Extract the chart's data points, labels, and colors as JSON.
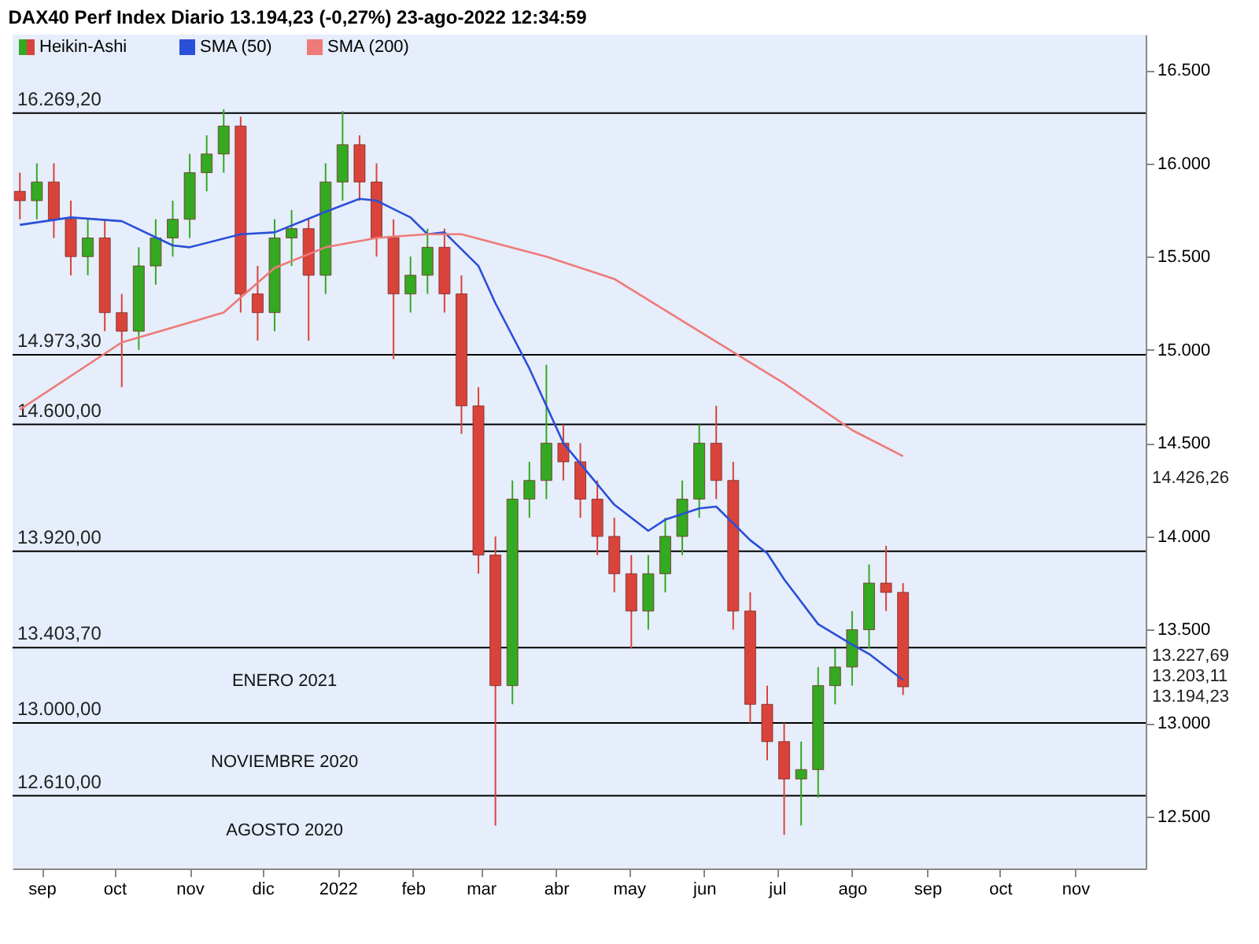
{
  "chart_data": {
    "type": "candlestick",
    "title": "DAX40 Perf Index Diario 13.194,23 (-0,27%) 23-ago-2022 12:34:59",
    "legend": "top left",
    "xlim": [
      "2021-08-20",
      "2022-11-30"
    ],
    "xticks": [
      {
        "value": "2021-09-01",
        "label": "sep"
      },
      {
        "value": "2021-10-01",
        "label": "oct"
      },
      {
        "value": "2021-11-01",
        "label": "nov"
      },
      {
        "value": "2021-12-01",
        "label": "dic"
      },
      {
        "value": "2022-01-01",
        "label": "2022"
      },
      {
        "value": "2022-02-01",
        "label": "feb"
      },
      {
        "value": "2022-03-01",
        "label": "mar"
      },
      {
        "value": "2022-04-01",
        "label": "abr"
      },
      {
        "value": "2022-05-01",
        "label": "may"
      },
      {
        "value": "2022-06-01",
        "label": "jun"
      },
      {
        "value": "2022-07-01",
        "label": "jul"
      },
      {
        "value": "2022-08-01",
        "label": "ago"
      },
      {
        "value": "2022-09-01",
        "label": "sep"
      },
      {
        "value": "2022-10-01",
        "label": "oct"
      },
      {
        "value": "2022-11-01",
        "label": "nov"
      }
    ],
    "ylim": [
      12220,
      16690
    ],
    "yticks": [
      {
        "value": 12500,
        "label": "12.500"
      },
      {
        "value": 13000,
        "label": "13.000"
      },
      {
        "value": 13500,
        "label": "13.500"
      },
      {
        "value": 14000,
        "label": "14.000"
      },
      {
        "value": 14500,
        "label": "14.500"
      },
      {
        "value": 15000,
        "label": "15.000"
      },
      {
        "value": 15500,
        "label": "15.500"
      },
      {
        "value": 16000,
        "label": "16.000"
      },
      {
        "value": 16500,
        "label": "16.500"
      }
    ],
    "ref_lines": [
      {
        "axis": "y",
        "value": 16269.2,
        "label": "16.269,20",
        "color": "#000000"
      },
      {
        "axis": "y",
        "value": 14973.3,
        "label": "14.973,30",
        "color": "#000000"
      },
      {
        "axis": "y",
        "value": 14600,
        "label": "14.600,00",
        "color": "#000000"
      },
      {
        "axis": "y",
        "value": 13920,
        "label": "13.920,00",
        "color": "#000000"
      },
      {
        "axis": "y",
        "value": 13403.7,
        "label": "13.403,70",
        "color": "#000000"
      },
      {
        "axis": "y",
        "value": 13000,
        "label": "13.000,00",
        "color": "#000000"
      },
      {
        "axis": "y",
        "value": 12610,
        "label": "12.610,00",
        "color": "#000000"
      }
    ],
    "annotations": [
      "ENERO 2021",
      "NOVIEMBRE 2020",
      "AGOSTO 2020",
      "14.426,26",
      "13.227,69",
      "13.203,11",
      "13.194,23"
    ],
    "series": [
      {
        "name": "Heikin-Ashi",
        "x": [
          "2021-08-23",
          "2021-08-30",
          "2021-09-06",
          "2021-09-13",
          "2021-09-20",
          "2021-09-27",
          "2021-10-04",
          "2021-10-11",
          "2021-10-18",
          "2021-10-25",
          "2021-11-01",
          "2021-11-08",
          "2021-11-15",
          "2021-11-22",
          "2021-11-29",
          "2021-12-06",
          "2021-12-13",
          "2021-12-20",
          "2021-12-27",
          "2022-01-03",
          "2022-01-10",
          "2022-01-17",
          "2022-01-24",
          "2022-01-31",
          "2022-02-07",
          "2022-02-14",
          "2022-02-21",
          "2022-02-28",
          "2022-03-07",
          "2022-03-14",
          "2022-03-21",
          "2022-03-28",
          "2022-04-04",
          "2022-04-11",
          "2022-04-18",
          "2022-04-25",
          "2022-05-02",
          "2022-05-09",
          "2022-05-16",
          "2022-05-23",
          "2022-05-30",
          "2022-06-06",
          "2022-06-13",
          "2022-06-20",
          "2022-06-27",
          "2022-07-04",
          "2022-07-11",
          "2022-07-18",
          "2022-07-25",
          "2022-08-01",
          "2022-08-08",
          "2022-08-15",
          "2022-08-22"
        ],
        "ohlc": [
          [
            15850,
            15950,
            15700,
            15800
          ],
          [
            15800,
            16000,
            15700,
            15900
          ],
          [
            15900,
            16000,
            15600,
            15700
          ],
          [
            15700,
            15800,
            15400,
            15500
          ],
          [
            15500,
            15700,
            15400,
            15600
          ],
          [
            15600,
            15700,
            15100,
            15200
          ],
          [
            15200,
            15300,
            14800,
            15100
          ],
          [
            15100,
            15550,
            15000,
            15450
          ],
          [
            15450,
            15700,
            15350,
            15600
          ],
          [
            15600,
            15800,
            15500,
            15700
          ],
          [
            15700,
            16050,
            15600,
            15950
          ],
          [
            15950,
            16150,
            15850,
            16050
          ],
          [
            16050,
            16290,
            15950,
            16200
          ],
          [
            16200,
            16250,
            15200,
            15300
          ],
          [
            15300,
            15450,
            15050,
            15200
          ],
          [
            15200,
            15700,
            15100,
            15600
          ],
          [
            15600,
            15750,
            15450,
            15650
          ],
          [
            15650,
            15700,
            15050,
            15400
          ],
          [
            15400,
            16000,
            15300,
            15900
          ],
          [
            15900,
            16280,
            15800,
            16100
          ],
          [
            16100,
            16150,
            15800,
            15900
          ],
          [
            15900,
            16000,
            15500,
            15600
          ],
          [
            15600,
            15700,
            14950,
            15300
          ],
          [
            15300,
            15500,
            15200,
            15400
          ],
          [
            15400,
            15650,
            15300,
            15550
          ],
          [
            15550,
            15650,
            15200,
            15300
          ],
          [
            15300,
            15400,
            14550,
            14700
          ],
          [
            14700,
            14800,
            13800,
            13900
          ],
          [
            13900,
            14000,
            12450,
            13200
          ],
          [
            13200,
            14300,
            13100,
            14200
          ],
          [
            14200,
            14400,
            14100,
            14300
          ],
          [
            14300,
            14920,
            14200,
            14500
          ],
          [
            14500,
            14600,
            14300,
            14400
          ],
          [
            14400,
            14500,
            14100,
            14200
          ],
          [
            14200,
            14300,
            13900,
            14000
          ],
          [
            14000,
            14100,
            13700,
            13800
          ],
          [
            13800,
            13900,
            13400,
            13600
          ],
          [
            13600,
            13900,
            13500,
            13800
          ],
          [
            13800,
            14100,
            13700,
            14000
          ],
          [
            14000,
            14300,
            13900,
            14200
          ],
          [
            14200,
            14600,
            14100,
            14500
          ],
          [
            14500,
            14700,
            14200,
            14300
          ],
          [
            14300,
            14400,
            13500,
            13600
          ],
          [
            13600,
            13700,
            13000,
            13100
          ],
          [
            13100,
            13200,
            12800,
            12900
          ],
          [
            12900,
            13000,
            12400,
            12700
          ],
          [
            12700,
            12900,
            12450,
            12750
          ],
          [
            12750,
            13300,
            12600,
            13200
          ],
          [
            13200,
            13400,
            13100,
            13300
          ],
          [
            13300,
            13600,
            13200,
            13500
          ],
          [
            13500,
            13850,
            13400,
            13750
          ],
          [
            13750,
            13950,
            13600,
            13700
          ],
          [
            13700,
            13750,
            13150,
            13194
          ]
        ],
        "colors": [
          "#d9433b",
          "#33aa22",
          "#d9433b",
          "#d9433b",
          "#33aa22",
          "#d9433b",
          "#d9433b",
          "#33aa22",
          "#33aa22",
          "#33aa22",
          "#33aa22",
          "#33aa22",
          "#33aa22",
          "#d9433b",
          "#d9433b",
          "#33aa22",
          "#33aa22",
          "#d9433b",
          "#33aa22",
          "#33aa22",
          "#d9433b",
          "#d9433b",
          "#d9433b",
          "#33aa22",
          "#33aa22",
          "#d9433b",
          "#d9433b",
          "#d9433b",
          "#d9433b",
          "#33aa22",
          "#33aa22",
          "#33aa22",
          "#d9433b",
          "#d9433b",
          "#d9433b",
          "#d9433b",
          "#d9433b",
          "#33aa22",
          "#33aa22",
          "#33aa22",
          "#33aa22",
          "#d9433b",
          "#d9433b",
          "#d9433b",
          "#d9433b",
          "#d9433b",
          "#33aa22",
          "#33aa22",
          "#33aa22",
          "#33aa22",
          "#33aa22",
          "#d9433b",
          "#d9433b"
        ]
      },
      {
        "name": "SMA (50)",
        "type": "line",
        "color": "#2a4fd8",
        "x": [
          "2021-08-23",
          "2021-09-13",
          "2021-10-04",
          "2021-10-25",
          "2021-11-01",
          "2021-11-22",
          "2021-12-06",
          "2021-12-27",
          "2022-01-10",
          "2022-01-17",
          "2022-01-31",
          "2022-02-07",
          "2022-02-14",
          "2022-02-28",
          "2022-03-07",
          "2022-03-21",
          "2022-04-04",
          "2022-04-25",
          "2022-05-09",
          "2022-05-16",
          "2022-05-30",
          "2022-06-06",
          "2022-06-20",
          "2022-06-27",
          "2022-07-04",
          "2022-07-18",
          "2022-08-01",
          "2022-08-08",
          "2022-08-22"
        ],
        "values": [
          15670,
          15710,
          15690,
          15560,
          15550,
          15620,
          15630,
          15740,
          15810,
          15800,
          15710,
          15620,
          15630,
          15450,
          15250,
          14900,
          14500,
          14170,
          14030,
          14090,
          14150,
          14160,
          13980,
          13910,
          13770,
          13530,
          13420,
          13370,
          13230
        ]
      },
      {
        "name": "SMA (200)",
        "type": "line",
        "color": "#ee7b78",
        "x": [
          "2021-08-23",
          "2021-10-04",
          "2021-11-15",
          "2021-12-06",
          "2021-12-27",
          "2022-01-17",
          "2022-02-07",
          "2022-02-21",
          "2022-03-28",
          "2022-04-25",
          "2022-05-30",
          "2022-07-04",
          "2022-08-01",
          "2022-08-22"
        ],
        "values": [
          14680,
          15040,
          15200,
          15440,
          15550,
          15600,
          15620,
          15620,
          15500,
          15380,
          15100,
          14820,
          14570,
          14430
        ]
      }
    ]
  }
}
